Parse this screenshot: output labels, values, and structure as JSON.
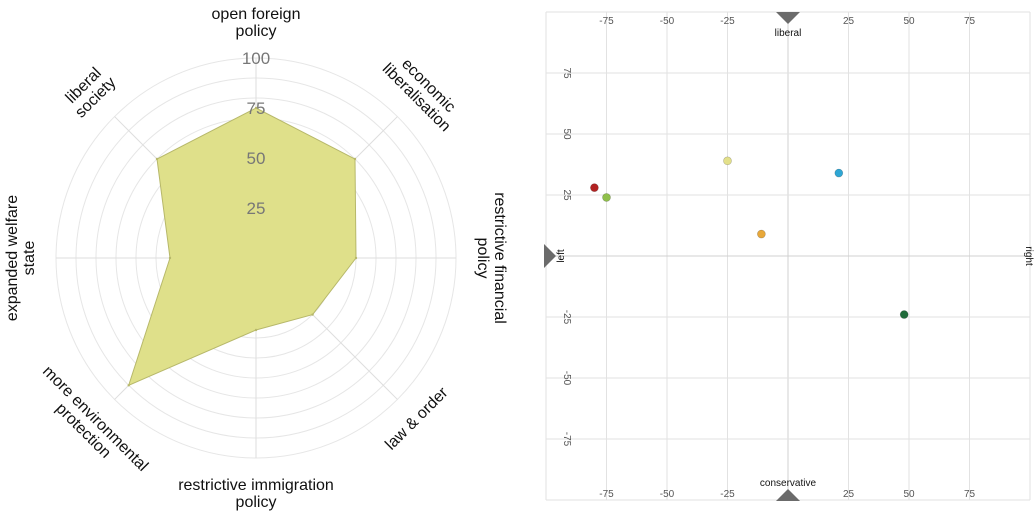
{
  "chart_data": [
    {
      "type": "radar",
      "spokes": [
        {
          "label": "open foreign policy",
          "value": 75
        },
        {
          "label": "economic liberalisation",
          "value": 70
        },
        {
          "label": "restrictive financial policy",
          "value": 50
        },
        {
          "label": "law & order",
          "value": 40
        },
        {
          "label": "restrictive immigration policy",
          "value": 36
        },
        {
          "label": "more environmental protection",
          "value": 90
        },
        {
          "label": "expanded welfare state",
          "value": 43
        },
        {
          "label": "liberal society",
          "value": 70
        }
      ],
      "spoke_lines": [
        [
          "open foreign",
          "policy"
        ],
        [
          "economic",
          "liberalisation"
        ],
        [
          "restrictive financial",
          "policy"
        ],
        [
          "law & order"
        ],
        [
          "restrictive immigration",
          "policy"
        ],
        [
          "more environmental",
          "protection"
        ],
        [
          "expanded welfare",
          "state"
        ],
        [
          "liberal",
          "society"
        ]
      ],
      "rlim": [
        0,
        100
      ],
      "rticks": [
        "25",
        "50",
        "75",
        "100"
      ],
      "grid": true,
      "fill_color": "#dfe08a",
      "stroke_color": "#b7b86a"
    },
    {
      "type": "scatter",
      "xlim": [
        -100,
        100
      ],
      "ylim": [
        -100,
        100
      ],
      "xticks": [
        "-75",
        "-50",
        "-25",
        "25",
        "50",
        "75"
      ],
      "yticks": [
        "75",
        "50",
        "25",
        "-25",
        "-50",
        "-75"
      ],
      "axis_labels": {
        "top": "liberal",
        "bottom": "conservative",
        "left": "left",
        "right": "right"
      },
      "points": [
        {
          "x": -80,
          "y": 28,
          "color": "#b22222"
        },
        {
          "x": -75,
          "y": 24,
          "color": "#8fbf4a"
        },
        {
          "x": -25,
          "y": 39,
          "color": "#e3e08a"
        },
        {
          "x": -11,
          "y": 9,
          "color": "#e8a83a"
        },
        {
          "x": 21,
          "y": 34,
          "color": "#2ea6d4"
        },
        {
          "x": 48,
          "y": -24,
          "color": "#1f6b3a"
        }
      ],
      "grid": true
    }
  ]
}
